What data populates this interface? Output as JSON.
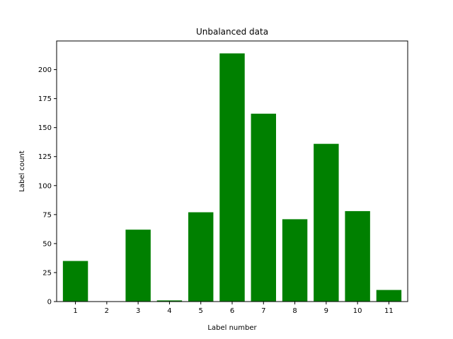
{
  "chart_data": {
    "type": "bar",
    "title": "Unbalanced data",
    "xlabel": "Label number",
    "ylabel": "Label count",
    "categories": [
      "1",
      "2",
      "3",
      "4",
      "5",
      "6",
      "7",
      "8",
      "9",
      "10",
      "11"
    ],
    "values": [
      35,
      0,
      62,
      1,
      77,
      214,
      162,
      71,
      136,
      78,
      10
    ],
    "ylim": [
      0,
      224.7
    ],
    "yticks": [
      0,
      25,
      50,
      75,
      100,
      125,
      150,
      175,
      200
    ],
    "bar_color": "#008000",
    "grid": false,
    "legend": "none"
  }
}
